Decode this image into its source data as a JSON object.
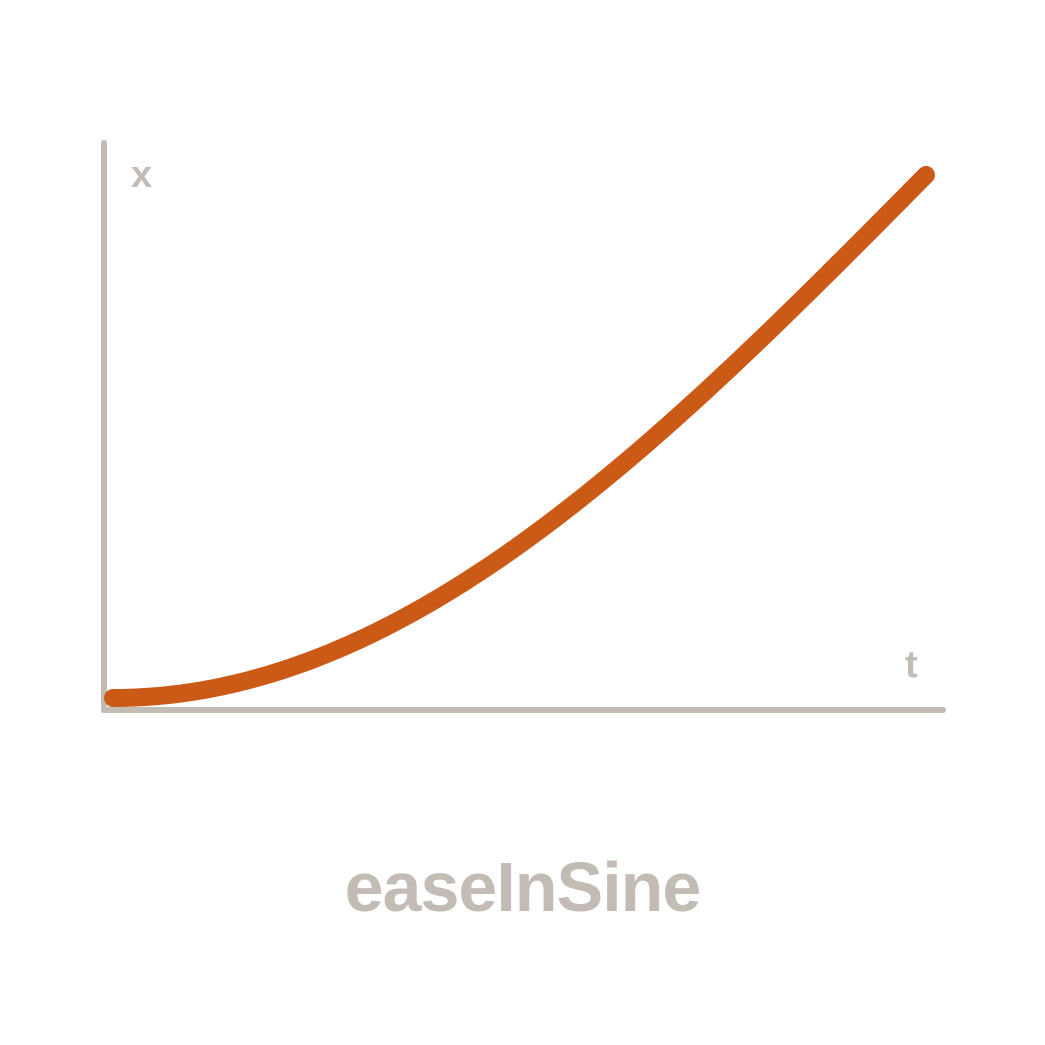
{
  "chart_data": {
    "type": "line",
    "title": "easeInSine",
    "xlabel": "t",
    "ylabel": "x",
    "xlim": [
      0,
      1
    ],
    "ylim": [
      0,
      1
    ],
    "grid": false,
    "series": [
      {
        "function": "easeInSine",
        "x": [
          0,
          0.1,
          0.2,
          0.3,
          0.4,
          0.5,
          0.6,
          0.7,
          0.8,
          0.9,
          1
        ],
        "y": [
          0,
          0.0123,
          0.0489,
          0.109,
          0.191,
          0.293,
          0.412,
          0.546,
          0.691,
          0.844,
          1
        ]
      }
    ]
  },
  "colors": {
    "curve": "#cc5a17",
    "axis": "#c2bcb5",
    "text": "#c2bcb5"
  }
}
